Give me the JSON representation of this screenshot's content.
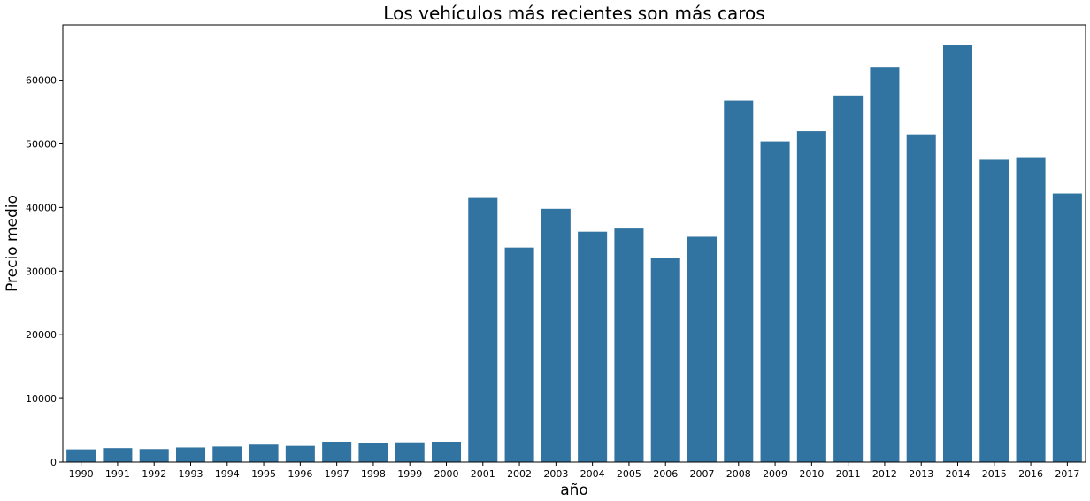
{
  "chart_data": {
    "type": "bar",
    "title": "Los vehículos más recientes son más caros",
    "xlabel": "año",
    "ylabel": "Precio medio",
    "categories": [
      "1990",
      "1991",
      "1992",
      "1993",
      "1994",
      "1995",
      "1996",
      "1997",
      "1998",
      "1999",
      "2000",
      "2001",
      "2002",
      "2003",
      "2004",
      "2005",
      "2006",
      "2007",
      "2008",
      "2009",
      "2010",
      "2011",
      "2012",
      "2013",
      "2014",
      "2015",
      "2016",
      "2017"
    ],
    "values": [
      2000,
      2200,
      2050,
      2300,
      2450,
      2750,
      2550,
      3200,
      3000,
      3100,
      3200,
      41500,
      33700,
      39800,
      36200,
      36700,
      32100,
      35400,
      56800,
      50400,
      52000,
      57600,
      62000,
      51500,
      65500,
      47500,
      47900,
      42200
    ],
    "ylim": [
      0,
      68700
    ],
    "yticks": [
      0,
      10000,
      20000,
      30000,
      40000,
      50000,
      60000
    ],
    "color": "#3274a1",
    "grid": false
  }
}
